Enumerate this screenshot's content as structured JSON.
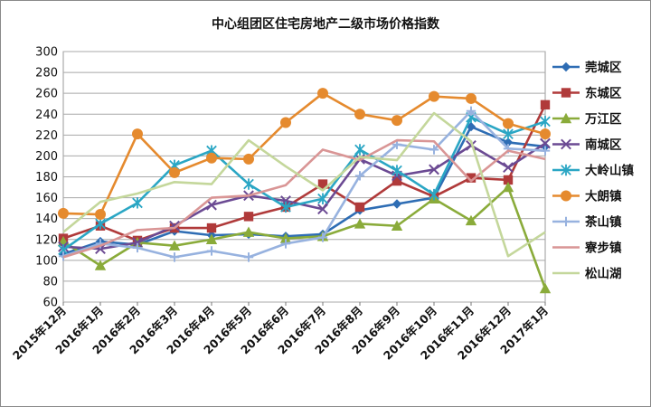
{
  "chart_data": {
    "type": "line",
    "title": "中心组团区住宅房地产二级市场价格指数",
    "xlabel": "",
    "ylabel": "",
    "ylim": [
      60,
      300
    ],
    "yticks": [
      60,
      80,
      100,
      120,
      140,
      160,
      180,
      200,
      220,
      240,
      260,
      280,
      300
    ],
    "grid": true,
    "legend_position": "right",
    "categories": [
      "2015年12月",
      "2016年1月",
      "2016年2月",
      "2016年3月",
      "2016年4月",
      "2016年5月",
      "2016年6月",
      "2016年7月",
      "2016年8月",
      "2016年9月",
      "2016年10月",
      "2016年11月",
      "2016年12月",
      "2017年1月"
    ],
    "series": [
      {
        "name": "莞城区",
        "color": "#2e6db4",
        "marker": "diamond",
        "values": [
          106,
          118,
          115,
          128,
          124,
          125,
          123,
          125,
          148,
          154,
          160,
          228,
          213,
          209
        ]
      },
      {
        "name": "东城区",
        "color": "#b03a3a",
        "marker": "square",
        "values": [
          121,
          133,
          119,
          131,
          131,
          142,
          151,
          173,
          151,
          176,
          161,
          179,
          177,
          249
        ]
      },
      {
        "name": "万江区",
        "color": "#8aab3a",
        "marker": "triangle",
        "values": [
          118,
          95,
          117,
          114,
          120,
          127,
          121,
          123,
          135,
          133,
          159,
          138,
          170,
          73
        ]
      },
      {
        "name": "南城区",
        "color": "#6b4a93",
        "marker": "x",
        "values": [
          113,
          111,
          117,
          133,
          153,
          162,
          157,
          149,
          197,
          181,
          187,
          210,
          189,
          212
        ]
      },
      {
        "name": "大岭山镇",
        "color": "#2aa6c4",
        "marker": "asterisk",
        "values": [
          110,
          135,
          155,
          191,
          205,
          173,
          151,
          159,
          206,
          186,
          163,
          237,
          221,
          233
        ]
      },
      {
        "name": "大朗镇",
        "color": "#e58a2e",
        "marker": "circle",
        "values": [
          145,
          144,
          221,
          184,
          198,
          197,
          232,
          260,
          240,
          234,
          257,
          255,
          231,
          221
        ]
      },
      {
        "name": "茶山镇",
        "color": "#97b2df",
        "marker": "plus",
        "values": [
          104,
          116,
          112,
          103,
          109,
          103,
          116,
          122,
          181,
          211,
          206,
          243,
          207,
          205
        ]
      },
      {
        "name": "寮步镇",
        "color": "#d99595",
        "marker": "none",
        "values": [
          103,
          114,
          129,
          131,
          160,
          162,
          172,
          206,
          196,
          215,
          214,
          176,
          205,
          197
        ]
      },
      {
        "name": "松山湖",
        "color": "#c4d79b",
        "marker": "none",
        "values": [
          127,
          156,
          164,
          175,
          173,
          215,
          190,
          167,
          199,
          196,
          241,
          214,
          104,
          127
        ]
      }
    ]
  }
}
